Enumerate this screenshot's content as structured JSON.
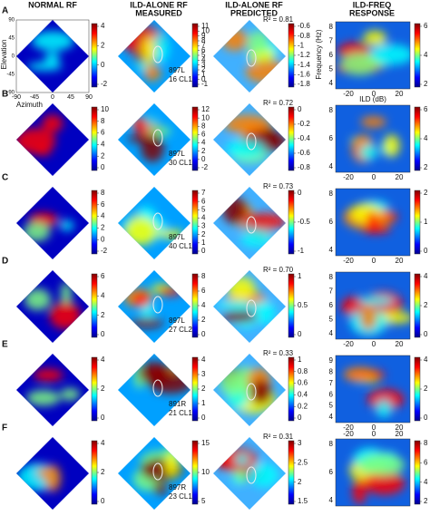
{
  "headers": [
    [
      "NORMAL RF"
    ],
    [
      "ILD-ALONE RF",
      "MEASURED"
    ],
    [
      "ILD-ALONE RF",
      "PREDICTED"
    ],
    [
      "ILD-FREQ",
      "RESPONSE"
    ]
  ],
  "axes": {
    "elevation": "Elevation",
    "azimuth": "Azimuth",
    "el_ticks": [
      90,
      45,
      0,
      -45,
      -90
    ],
    "az_ticks": [
      -90,
      -45,
      0,
      45,
      90
    ],
    "frequency": "Frequency (Hz)",
    "ild": "ILD (dB)"
  },
  "rows": [
    {
      "label": "A",
      "normal_cb": [
        4,
        2,
        0,
        -2
      ],
      "measured_cb": [
        11,
        10,
        9,
        8,
        7,
        6,
        5,
        4,
        3,
        2,
        1,
        0,
        -1
      ],
      "unit": [
        "897L",
        "16 CL1"
      ],
      "r2": "R² = 0.81",
      "predicted_cb": [
        -0.6,
        -0.8,
        -1,
        -1.2,
        -1.4,
        -1.6,
        -1.8
      ],
      "freq_ticks": [
        8,
        7,
        6,
        5,
        4
      ],
      "ild_ticks": [
        -20,
        0,
        20
      ],
      "resp_cb": [
        6,
        4,
        2
      ]
    },
    {
      "label": "B",
      "normal_cb": [
        10,
        8,
        6,
        4,
        2,
        0
      ],
      "measured_cb": [
        12,
        10,
        8,
        6,
        4,
        2,
        0,
        -2
      ],
      "unit": [
        "897L",
        "30 CL1"
      ],
      "r2": "R² = 0.72",
      "predicted_cb": [
        0,
        -0.2,
        -0.4,
        -0.6,
        -0.8
      ],
      "freq_ticks": [
        8,
        6,
        4
      ],
      "ild_ticks": [
        -20,
        0,
        20
      ],
      "resp_cb": [
        6,
        4,
        2
      ]
    },
    {
      "label": "C",
      "normal_cb": [
        8,
        6,
        4,
        2,
        0,
        -2
      ],
      "measured_cb": [
        7,
        6,
        5,
        4,
        3,
        2,
        1,
        0
      ],
      "unit": [
        "897L",
        "40 CL1"
      ],
      "r2": "R² = 0.73",
      "predicted_cb": [
        0,
        -0.5,
        -1
      ],
      "freq_ticks": [
        8,
        6,
        4
      ],
      "ild_ticks": [
        -20,
        0,
        20
      ],
      "resp_cb": [
        2,
        1,
        0
      ]
    },
    {
      "label": "D",
      "normal_cb": [
        6,
        4,
        2,
        0
      ],
      "measured_cb": [
        8,
        6,
        4,
        2,
        0
      ],
      "unit": [
        "897L",
        "27 CL2"
      ],
      "r2": "R² = 0.70",
      "predicted_cb": [
        1,
        0.5,
        0
      ],
      "freq_ticks": [
        8,
        7,
        6,
        5,
        4
      ],
      "ild_ticks": [
        -20,
        0,
        20
      ],
      "resp_cb": [
        4,
        2,
        0
      ]
    },
    {
      "label": "E",
      "normal_cb": [
        4,
        2,
        0
      ],
      "measured_cb": [
        4,
        3,
        2,
        1,
        0
      ],
      "unit": [
        "891R",
        "21 CL1"
      ],
      "r2": "R² = 0.33",
      "predicted_cb": [
        1,
        0.8,
        0.6,
        0.4,
        0.2,
        0
      ],
      "freq_ticks": [
        9,
        8,
        7,
        6,
        5,
        4
      ],
      "ild_ticks": [
        -20,
        0,
        20
      ],
      "resp_cb": [
        4,
        2,
        0
      ]
    },
    {
      "label": "F",
      "normal_cb": [
        4,
        2,
        0
      ],
      "measured_cb": [
        15,
        10,
        5
      ],
      "unit": [
        "897R",
        "23 CL1"
      ],
      "r2": "R² = 0.31",
      "predicted_cb": [
        3,
        2.5,
        2,
        1.5
      ],
      "freq_ticks": [
        8,
        6,
        4
      ],
      "ild_ticks": [
        -20,
        0,
        20
      ],
      "resp_cb": [
        8,
        6,
        4,
        2
      ]
    }
  ]
}
